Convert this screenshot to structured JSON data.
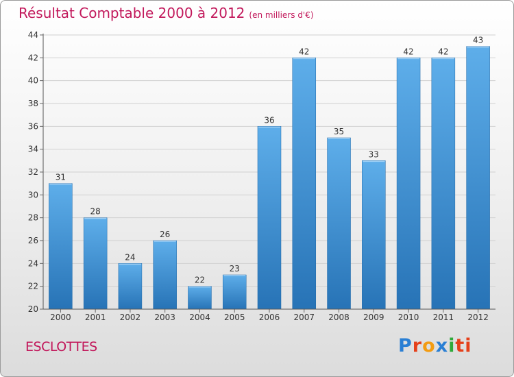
{
  "header": {
    "title": "Résultat Comptable 2000 à 2012",
    "unit": "(en milliers d'€)"
  },
  "footer": {
    "commune": "ESCLOTTES",
    "logo_letters": [
      "P",
      "r",
      "o",
      "x",
      "i",
      "ti"
    ]
  },
  "colors": {
    "title": "#c2185b",
    "bar_light": "#5aaae8",
    "bar_dark": "#2a76b8"
  },
  "chart_data": {
    "type": "bar",
    "title": "Résultat Comptable 2000 à 2012",
    "subtitle": "(en milliers d'€)",
    "xlabel": "",
    "ylabel": "",
    "categories": [
      "2000",
      "2001",
      "2002",
      "2003",
      "2004",
      "2005",
      "2006",
      "2007",
      "2008",
      "2009",
      "2010",
      "2011",
      "2012"
    ],
    "values": [
      31,
      28,
      24,
      26,
      22,
      23,
      36,
      42,
      35,
      33,
      42,
      42,
      43
    ],
    "ylim": [
      20,
      44
    ],
    "yticks": [
      20,
      22,
      24,
      26,
      28,
      30,
      32,
      34,
      36,
      38,
      40,
      42,
      44
    ],
    "grid": "horizontal",
    "data_labels": true
  }
}
